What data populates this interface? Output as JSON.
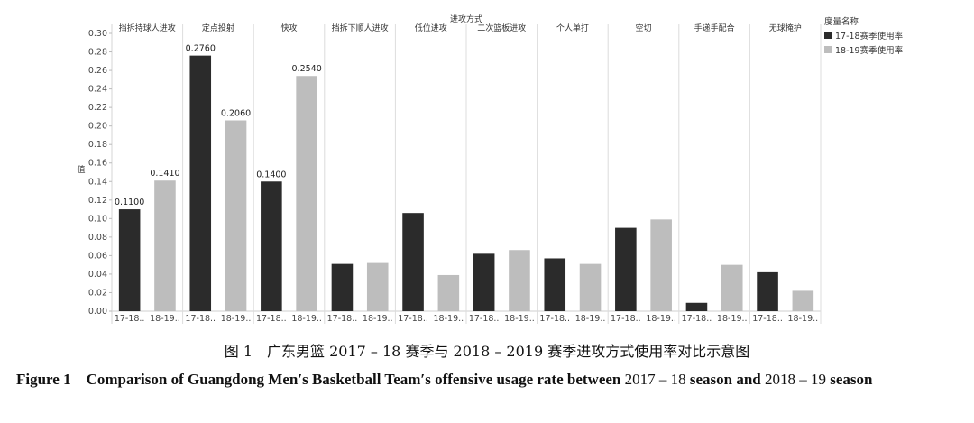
{
  "chart_data": {
    "type": "bar",
    "top_label": "进攻方式",
    "ylabel": "值",
    "ylim": [
      0,
      0.3
    ],
    "yticks": [
      "0.00",
      "0.02",
      "0.04",
      "0.06",
      "0.08",
      "0.10",
      "0.12",
      "0.14",
      "0.16",
      "0.18",
      "0.20",
      "0.22",
      "0.24",
      "0.26",
      "0.28",
      "0.30"
    ],
    "grid": "vertical-panel-dividers",
    "groups": [
      {
        "name": "挡拆持球人进攻",
        "bars": [
          {
            "label": "17-18..",
            "value": 0.11,
            "text": "0.1100"
          },
          {
            "label": "18-19..",
            "value": 0.141,
            "text": "0.1410"
          }
        ]
      },
      {
        "name": "定点投射",
        "bars": [
          {
            "label": "17-18..",
            "value": 0.276,
            "text": "0.2760"
          },
          {
            "label": "18-19..",
            "value": 0.206,
            "text": "0.2060"
          }
        ]
      },
      {
        "name": "快攻",
        "bars": [
          {
            "label": "17-18..",
            "value": 0.14,
            "text": "0.1400"
          },
          {
            "label": "18-19..",
            "value": 0.254,
            "text": "0.2540"
          }
        ]
      },
      {
        "name": "挡拆下顺人进攻",
        "bars": [
          {
            "label": "17-18..",
            "value": 0.051,
            "text": ""
          },
          {
            "label": "18-19..",
            "value": 0.052,
            "text": ""
          }
        ]
      },
      {
        "name": "低位进攻",
        "bars": [
          {
            "label": "17-18..",
            "value": 0.106,
            "text": ""
          },
          {
            "label": "18-19..",
            "value": 0.039,
            "text": ""
          }
        ]
      },
      {
        "name": "二次篮板进攻",
        "bars": [
          {
            "label": "17-18..",
            "value": 0.062,
            "text": ""
          },
          {
            "label": "18-19..",
            "value": 0.066,
            "text": ""
          }
        ]
      },
      {
        "name": "个人单打",
        "bars": [
          {
            "label": "17-18..",
            "value": 0.057,
            "text": ""
          },
          {
            "label": "18-19..",
            "value": 0.051,
            "text": ""
          }
        ]
      },
      {
        "name": "空切",
        "bars": [
          {
            "label": "17-18..",
            "value": 0.09,
            "text": ""
          },
          {
            "label": "18-19..",
            "value": 0.099,
            "text": ""
          }
        ]
      },
      {
        "name": "手递手配合",
        "bars": [
          {
            "label": "17-18..",
            "value": 0.009,
            "text": ""
          },
          {
            "label": "18-19..",
            "value": 0.05,
            "text": ""
          }
        ]
      },
      {
        "name": "无球掩护",
        "bars": [
          {
            "label": "17-18..",
            "value": 0.042,
            "text": ""
          },
          {
            "label": "18-19..",
            "value": 0.022,
            "text": ""
          }
        ]
      }
    ],
    "legend": {
      "title": "度量名称",
      "placement": "top-right",
      "items": [
        {
          "name": "17-18赛季使用率",
          "color": "#2b2b2b"
        },
        {
          "name": "18-19赛季使用率",
          "color": "#bdbdbd"
        }
      ]
    }
  },
  "captions": {
    "cn": "图 1　广东男篮 2017 – 18 赛季与 2018 – 2019 赛季进攻方式使用率对比示意图",
    "en_bold_1": "Figure 1　Comparison of Guangdong Men′s Basketball Team′s offensive usage rate between",
    "en_plain_1": " 2017 – 18 ",
    "en_bold_2": "season and",
    "en_plain_2": " 2018 – 19 ",
    "en_bold_3": "season"
  }
}
